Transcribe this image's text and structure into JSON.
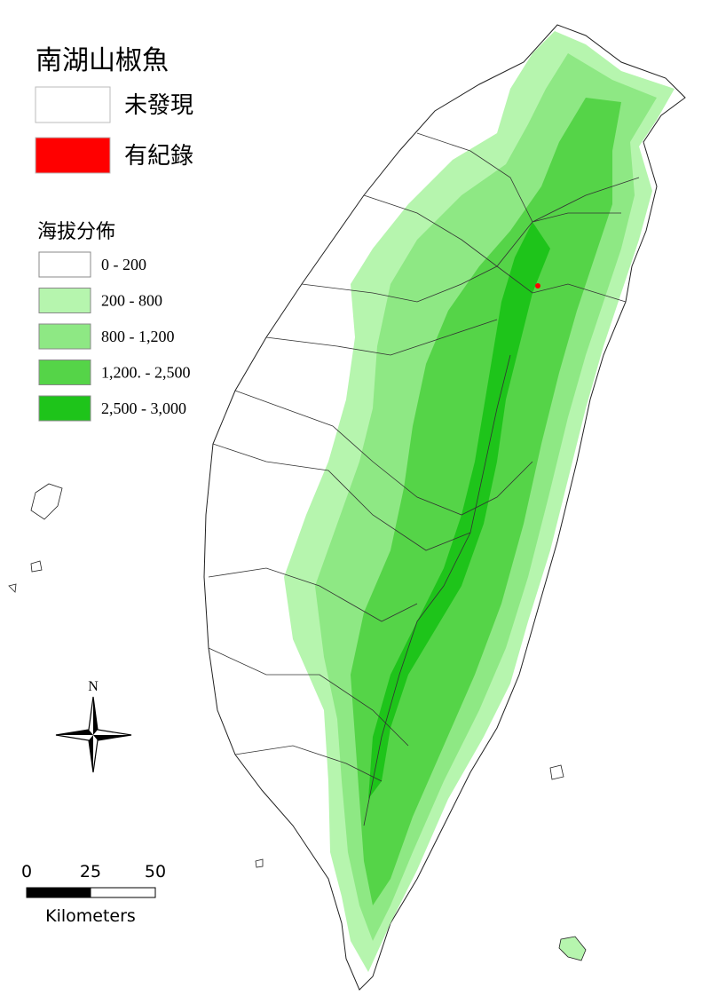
{
  "title": "南湖山椒魚",
  "record_legend": [
    {
      "label": "未發現",
      "color": "#ffffff"
    },
    {
      "label": "有紀錄",
      "color": "#ff0000"
    }
  ],
  "elevation_legend": {
    "title": "海拔分佈",
    "classes": [
      {
        "label": "0 - 200",
        "color": "#ffffff"
      },
      {
        "label": "200 - 800",
        "color": "#b6f5ae"
      },
      {
        "label": "800 - 1,200",
        "color": "#8ee884"
      },
      {
        "label": "1,200. - 2,500",
        "color": "#55d448"
      },
      {
        "label": "2,500 - 3,000",
        "color": "#1ec41a"
      }
    ]
  },
  "north_label": "N",
  "scale_bar": {
    "ticks": [
      "0",
      "25",
      "50"
    ],
    "unit": "Kilometers"
  }
}
